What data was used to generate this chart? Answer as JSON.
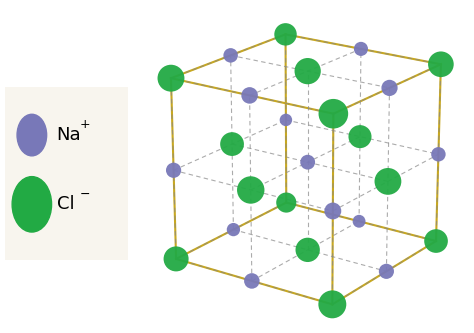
{
  "na_color": "#7878b8",
  "cl_color": "#22aa44",
  "na_size": 120,
  "cl_size": 350,
  "edge_color_solid": "#c8a820",
  "edge_color_dashed": "#888888",
  "bg_color": "#ffffff",
  "legend_bg": "#f8f5ee",
  "title": "",
  "na_label": "Na",
  "cl_label": "Cl",
  "na_sup": "+",
  "cl_sup": "−",
  "figsize": [
    4.74,
    3.33
  ],
  "dpi": 100
}
